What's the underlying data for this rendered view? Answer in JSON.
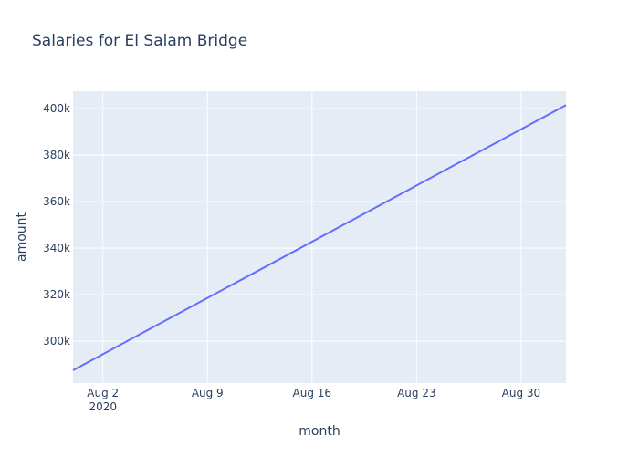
{
  "chart_data": {
    "type": "line",
    "title": "Salaries for El Salam Bridge",
    "xlabel": "month",
    "ylabel": "amount",
    "x": [
      "2020-07-31",
      "2020-09-02"
    ],
    "series": [
      {
        "values": [
          287500,
          401500
        ]
      }
    ],
    "xlim": [
      "2020-07-31",
      "2020-09-02"
    ],
    "ylim": [
      282000,
      407500
    ],
    "x_ticks": [
      {
        "date": "2020-08-02",
        "label": "Aug 2",
        "sublabel": "2020"
      },
      {
        "date": "2020-08-09",
        "label": "Aug 9"
      },
      {
        "date": "2020-08-16",
        "label": "Aug 16"
      },
      {
        "date": "2020-08-23",
        "label": "Aug 23"
      },
      {
        "date": "2020-08-30",
        "label": "Aug 30"
      }
    ],
    "y_ticks": [
      {
        "value": 300000,
        "label": "300k"
      },
      {
        "value": 320000,
        "label": "320k"
      },
      {
        "value": 340000,
        "label": "340k"
      },
      {
        "value": 360000,
        "label": "360k"
      },
      {
        "value": 380000,
        "label": "380k"
      },
      {
        "value": 400000,
        "label": "400k"
      }
    ],
    "grid": true,
    "colors": {
      "plot_bg": "#e5ecf6",
      "grid": "#ffffff",
      "line": "#636efa",
      "text": "#2a3f5f"
    }
  }
}
